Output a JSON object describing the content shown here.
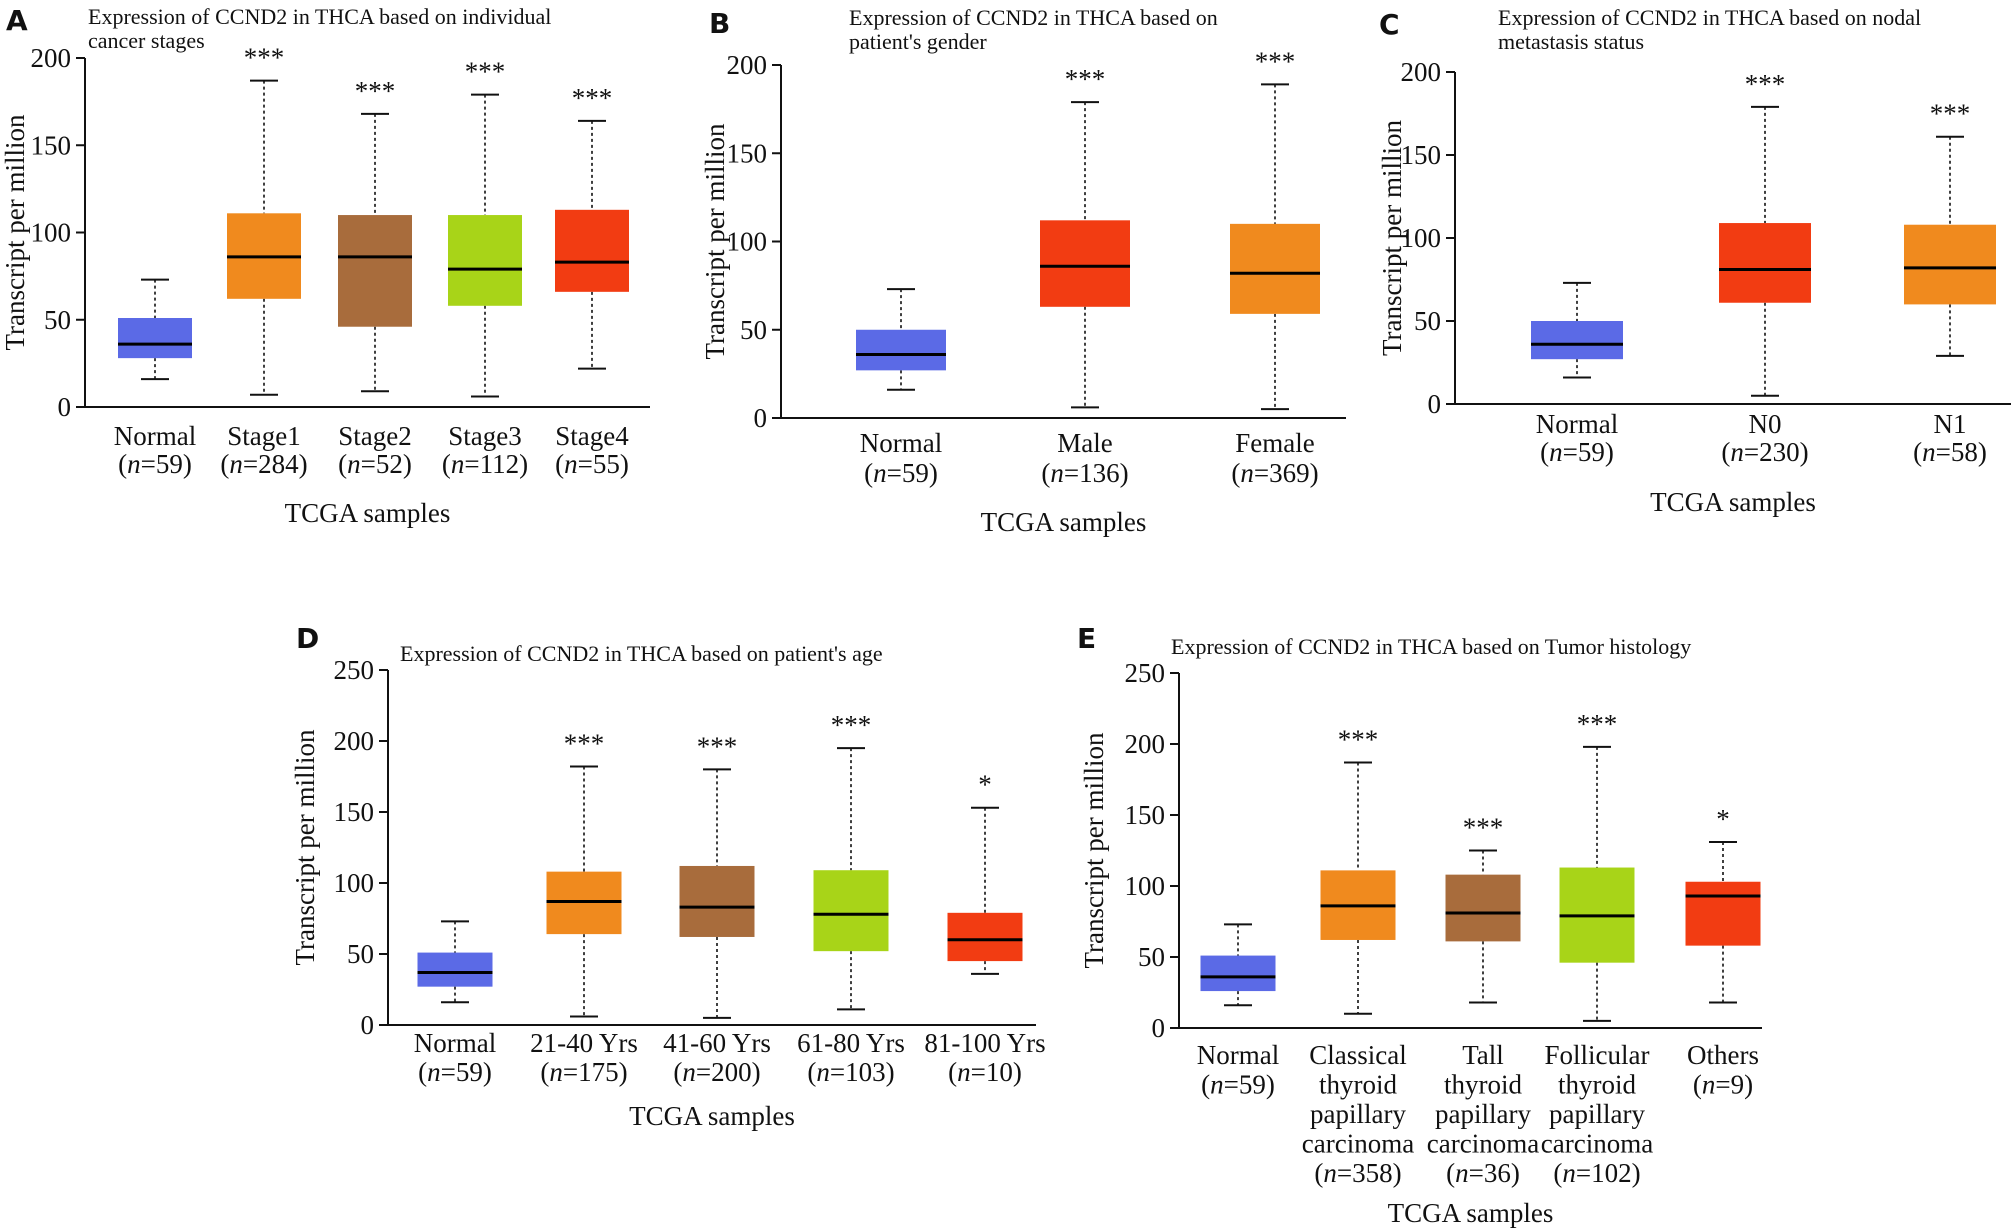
{
  "chart_data": [
    {
      "type": "box",
      "panel": "A",
      "title_lines": [
        "Expression of CCND2 in THCA based on individual",
        "cancer stages"
      ],
      "ylabel": "Transcript per million",
      "xlabel": "TCGA samples",
      "ylim": [
        0,
        200
      ],
      "yticks": [
        0,
        50,
        100,
        150,
        200
      ],
      "groups": [
        {
          "name": "Normal",
          "n": "59",
          "color": "#5b6ae6",
          "min": 16,
          "q1": 28,
          "median": 36,
          "q3": 51,
          "max": 73,
          "sig": ""
        },
        {
          "name": "Stage1",
          "n": "284",
          "color": "#f08a1e",
          "min": 7,
          "q1": 62,
          "median": 86,
          "q3": 111,
          "max": 187,
          "sig": "***"
        },
        {
          "name": "Stage2",
          "n": "52",
          "color": "#a86c3c",
          "min": 9,
          "q1": 46,
          "median": 86,
          "q3": 110,
          "max": 168,
          "sig": "***"
        },
        {
          "name": "Stage3",
          "n": "112",
          "color": "#a8d418",
          "min": 6,
          "q1": 58,
          "median": 79,
          "q3": 110,
          "max": 179,
          "sig": "***"
        },
        {
          "name": "Stage4",
          "n": "55",
          "color": "#f23c12",
          "min": 22,
          "q1": 66,
          "median": 83,
          "q3": 113,
          "max": 164,
          "sig": "***"
        }
      ]
    },
    {
      "type": "box",
      "panel": "B",
      "title_lines": [
        "Expression of CCND2 in THCA based on",
        "patient's gender"
      ],
      "ylabel": "Transcript per million",
      "xlabel": "TCGA samples",
      "ylim": [
        0,
        200
      ],
      "yticks": [
        0,
        50,
        100,
        150,
        200
      ],
      "groups": [
        {
          "name": "Normal",
          "n": "59",
          "color": "#5b6ae6",
          "min": 16,
          "q1": 27,
          "median": 36,
          "q3": 50,
          "max": 73,
          "sig": ""
        },
        {
          "name": "Male",
          "n": "136",
          "color": "#f23c12",
          "min": 6,
          "q1": 63,
          "median": 86,
          "q3": 112,
          "max": 179,
          "sig": "***"
        },
        {
          "name": "Female",
          "n": "369",
          "color": "#f08a1e",
          "min": 5,
          "q1": 59,
          "median": 82,
          "q3": 110,
          "max": 189,
          "sig": "***"
        }
      ]
    },
    {
      "type": "box",
      "panel": "C",
      "title_lines": [
        "Expression of CCND2 in THCA based on nodal",
        "metastasis status"
      ],
      "ylabel": "Transcript per million",
      "xlabel": "TCGA samples",
      "ylim": [
        0,
        200
      ],
      "yticks": [
        0,
        50,
        100,
        150,
        200
      ],
      "groups": [
        {
          "name": "Normal",
          "n": "59",
          "color": "#5b6ae6",
          "min": 16,
          "q1": 27,
          "median": 36,
          "q3": 50,
          "max": 73,
          "sig": ""
        },
        {
          "name": "N0",
          "n": "230",
          "color": "#f23c12",
          "min": 5,
          "q1": 61,
          "median": 81,
          "q3": 109,
          "max": 179,
          "sig": "***"
        },
        {
          "name": "N1",
          "n": "58",
          "color": "#f08a1e",
          "min": 29,
          "q1": 60,
          "median": 82,
          "q3": 108,
          "max": 161,
          "sig": "***"
        }
      ]
    },
    {
      "type": "box",
      "panel": "D",
      "title_lines": [
        "Expression of CCND2 in THCA based on patient's age"
      ],
      "ylabel": "Transcript per million",
      "xlabel": "TCGA samples",
      "ylim": [
        0,
        250
      ],
      "yticks": [
        0,
        50,
        100,
        150,
        200,
        250
      ],
      "groups": [
        {
          "name": "Normal",
          "n": "59",
          "color": "#5b6ae6",
          "min": 16,
          "q1": 27,
          "median": 37,
          "q3": 51,
          "max": 73,
          "sig": ""
        },
        {
          "name": "21-40 Yrs",
          "n": "175",
          "color": "#f08a1e",
          "min": 6,
          "q1": 64,
          "median": 87,
          "q3": 108,
          "max": 182,
          "sig": "***"
        },
        {
          "name": "41-60 Yrs",
          "n": "200",
          "color": "#a86c3c",
          "min": 5,
          "q1": 62,
          "median": 83,
          "q3": 112,
          "max": 180,
          "sig": "***"
        },
        {
          "name": "61-80 Yrs",
          "n": "103",
          "color": "#a8d418",
          "min": 11,
          "q1": 52,
          "median": 78,
          "q3": 109,
          "max": 195,
          "sig": "***"
        },
        {
          "name": "81-100 Yrs",
          "n": "10",
          "color": "#f23c12",
          "min": 36,
          "q1": 45,
          "median": 60,
          "q3": 79,
          "max": 153,
          "sig": "*"
        }
      ]
    },
    {
      "type": "box",
      "panel": "E",
      "title_lines": [
        "Expression of CCND2 in THCA based on Tumor histology"
      ],
      "ylabel": "Transcript per million",
      "xlabel": "TCGA samples",
      "ylim": [
        0,
        250
      ],
      "yticks": [
        0,
        50,
        100,
        150,
        200,
        250
      ],
      "groups": [
        {
          "name_lines": [
            "Normal"
          ],
          "n": "59",
          "color": "#5b6ae6",
          "min": 16,
          "q1": 26,
          "median": 36,
          "q3": 51,
          "max": 73,
          "sig": ""
        },
        {
          "name_lines": [
            "Classical",
            "thyroid",
            "papillary",
            "carcinoma"
          ],
          "n": "358",
          "color": "#f08a1e",
          "min": 10,
          "q1": 62,
          "median": 86,
          "q3": 111,
          "max": 187,
          "sig": "***"
        },
        {
          "name_lines": [
            "Tall",
            "thyroid",
            "papillary",
            "carcinoma"
          ],
          "n": "36",
          "color": "#a86c3c",
          "min": 18,
          "q1": 61,
          "median": 81,
          "q3": 108,
          "max": 125,
          "sig": "***"
        },
        {
          "name_lines": [
            "Follicular",
            "thyroid",
            "papillary",
            "carcinoma"
          ],
          "n": "102",
          "color": "#a8d418",
          "min": 5,
          "q1": 46,
          "median": 79,
          "q3": 113,
          "max": 198,
          "sig": "***"
        },
        {
          "name_lines": [
            "Others"
          ],
          "n": "9",
          "color": "#f23c12",
          "min": 18,
          "q1": 58,
          "median": 93,
          "q3": 103,
          "max": 131,
          "sig": "*"
        }
      ]
    }
  ]
}
